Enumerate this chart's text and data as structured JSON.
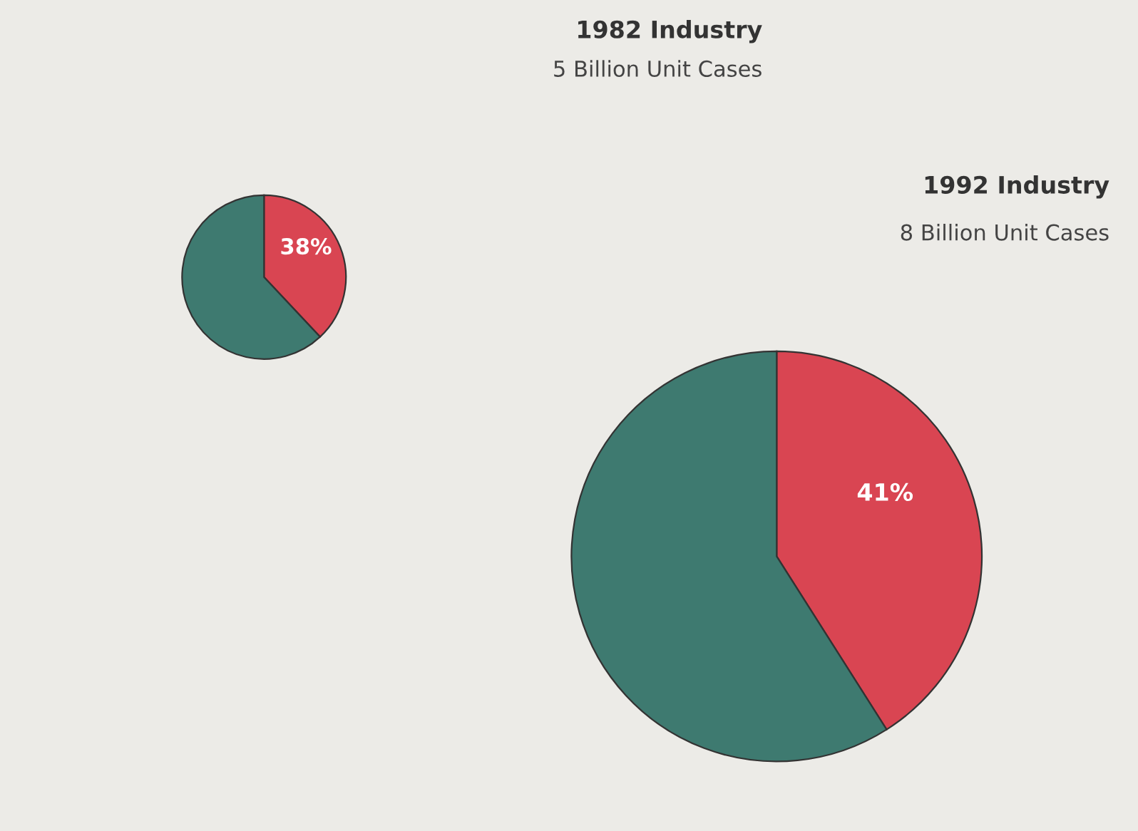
{
  "chart_data": [
    {
      "type": "pie",
      "title": "1982 Industry",
      "subtitle": "5 Billion Unit Cases",
      "categories": [
        null,
        null
      ],
      "values": [
        38,
        62
      ],
      "colors": [
        "#d94552",
        "#3e7a70"
      ],
      "value_labels": [
        "38%",
        null
      ],
      "legend": false
    },
    {
      "type": "pie",
      "title": "1992 Industry",
      "subtitle": "8 Billion Unit Cases",
      "categories": [
        null,
        null
      ],
      "values": [
        41,
        59
      ],
      "colors": [
        "#d94552",
        "#3e7a70"
      ],
      "value_labels": [
        "41%",
        null
      ],
      "legend": false
    }
  ]
}
